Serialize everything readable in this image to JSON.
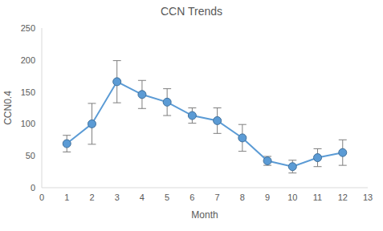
{
  "chart_data": {
    "type": "line",
    "title": "CCN Trends",
    "x_label": "Month",
    "y_label": "CCN0.4",
    "x": [
      1,
      2,
      3,
      4,
      5,
      6,
      7,
      8,
      9,
      10,
      11,
      12
    ],
    "values": [
      69,
      100,
      166,
      146,
      134,
      113,
      105,
      78,
      42,
      33,
      47,
      55
    ],
    "errors": [
      13,
      32,
      33,
      22,
      21,
      12,
      20,
      21,
      7,
      10,
      14,
      20
    ],
    "color": "#5b9bd5",
    "marker": "circle",
    "xlim": [
      0,
      13
    ],
    "xticks": [
      0,
      1,
      2,
      3,
      4,
      5,
      6,
      7,
      8,
      9,
      10,
      11,
      12,
      13
    ],
    "ylim": [
      0,
      250
    ],
    "yticks": [
      0,
      50,
      100,
      150,
      200,
      250
    ],
    "grid": false
  }
}
